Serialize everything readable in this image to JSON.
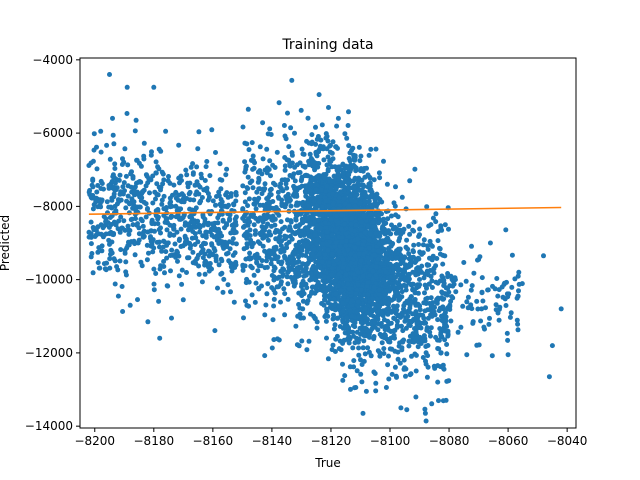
{
  "chart_data": {
    "type": "scatter",
    "title": "Training data",
    "xlabel": "True",
    "ylabel": "Predicted",
    "xlim": [
      -8205,
      -8037
    ],
    "ylim": [
      -14050,
      -3950
    ],
    "xticks": [
      -8200,
      -8180,
      -8160,
      -8140,
      -8120,
      -8100,
      -8080,
      -8060,
      -8040
    ],
    "yticks": [
      -4000,
      -6000,
      -8000,
      -10000,
      -12000,
      -14000
    ],
    "grid": false,
    "legend": "none",
    "series": [
      {
        "kind": "scatter",
        "color": "#1f77b4",
        "note_points": [
          {
            "x": -8195,
            "y": -4400
          },
          {
            "x": -8189,
            "y": -4750
          },
          {
            "x": -8180,
            "y": -4750
          },
          {
            "x": -8124,
            "y": -4950
          },
          {
            "x": -8148,
            "y": -5350
          },
          {
            "x": -8088,
            "y": -13650
          },
          {
            "x": -8108,
            "y": -13050
          },
          {
            "x": -8112,
            "y": -12950
          },
          {
            "x": -8116,
            "y": -12750
          },
          {
            "x": -8060,
            "y": -12050
          },
          {
            "x": -8046,
            "y": -12650
          },
          {
            "x": -8042,
            "y": -10800
          },
          {
            "x": -8048,
            "y": -9350
          },
          {
            "x": -8045,
            "y": -11800
          },
          {
            "x": -8066,
            "y": -9000
          },
          {
            "x": -8068,
            "y": -11350
          },
          {
            "x": -8070,
            "y": -9450
          },
          {
            "x": -8074,
            "y": -12050
          },
          {
            "x": -8076,
            "y": -11300
          },
          {
            "x": -8078,
            "y": -9950
          },
          {
            "x": -8192,
            "y": -10450
          },
          {
            "x": -8188,
            "y": -10700
          },
          {
            "x": -8182,
            "y": -11150
          },
          {
            "x": -8178,
            "y": -11600
          },
          {
            "x": -8174,
            "y": -11050
          },
          {
            "x": -8170,
            "y": -10550
          },
          {
            "x": -8198,
            "y": -5950
          },
          {
            "x": -8194,
            "y": -5600
          },
          {
            "x": -8186,
            "y": -5650
          },
          {
            "x": -8176,
            "y": -5950
          },
          {
            "x": -8196,
            "y": -9550
          }
        ]
      },
      {
        "kind": "line",
        "color": "#ff7f0e",
        "x": [
          -8202,
          -8042
        ],
        "y": [
          -8215,
          -8030
        ]
      }
    ]
  }
}
